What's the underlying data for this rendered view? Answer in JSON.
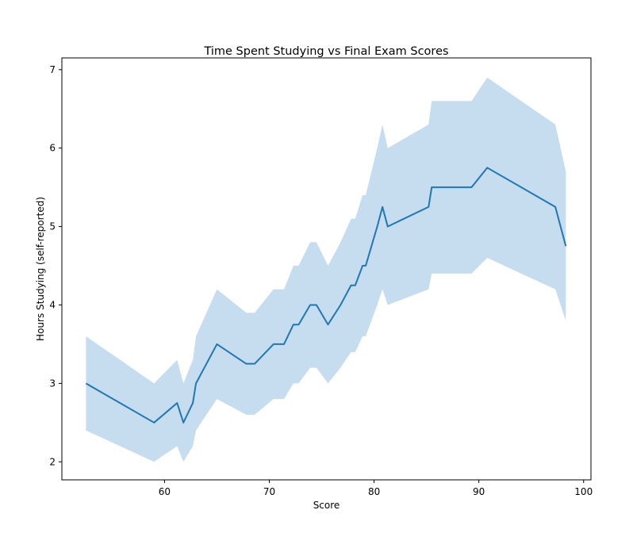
{
  "chart_data": {
    "type": "line",
    "title": "Time Spent Studying vs Final Exam Scores",
    "xlabel": "Score",
    "ylabel": "Hours Studying (self-reported)",
    "xlim": [
      50.2,
      100.7
    ],
    "ylim": [
      1.77,
      7.15
    ],
    "xticks": [
      60,
      70,
      80,
      90,
      100
    ],
    "yticks": [
      2,
      3,
      4,
      5,
      6,
      7
    ],
    "grid": false,
    "line_color": "#1f77b4",
    "band_color": "#c6dcef",
    "series": [
      {
        "x": [
          52.5,
          59.0,
          61.2,
          61.8,
          62.7,
          63.0,
          65.0,
          67.8,
          68.6,
          70.4,
          71.4,
          72.3,
          72.8,
          73.9,
          74.5,
          75.6,
          76.8,
          77.8,
          78.2,
          78.9,
          79.2,
          80.3,
          80.8,
          81.3,
          85.2,
          85.5,
          89.3,
          90.8,
          97.3,
          98.3
        ],
        "y": [
          3.0,
          2.5,
          2.75,
          2.5,
          2.75,
          3.0,
          3.5,
          3.25,
          3.25,
          3.5,
          3.5,
          3.75,
          3.75,
          4.0,
          4.0,
          3.75,
          4.0,
          4.25,
          4.25,
          4.5,
          4.5,
          5.0,
          5.25,
          5.0,
          5.25,
          5.5,
          5.5,
          5.75,
          5.25,
          4.75
        ],
        "lower": [
          2.4,
          2.0,
          2.2,
          2.0,
          2.2,
          2.4,
          2.8,
          2.6,
          2.6,
          2.8,
          2.8,
          3.0,
          3.0,
          3.2,
          3.2,
          3.0,
          3.2,
          3.4,
          3.4,
          3.6,
          3.6,
          4.0,
          4.2,
          4.0,
          4.2,
          4.4,
          4.4,
          4.6,
          4.2,
          3.8
        ],
        "upper": [
          3.6,
          3.0,
          3.3,
          3.0,
          3.3,
          3.6,
          4.2,
          3.9,
          3.9,
          4.2,
          4.2,
          4.5,
          4.5,
          4.8,
          4.8,
          4.5,
          4.8,
          5.1,
          5.1,
          5.4,
          5.4,
          6.0,
          6.3,
          6.0,
          6.3,
          6.6,
          6.6,
          6.9,
          6.3,
          5.7
        ]
      }
    ]
  }
}
